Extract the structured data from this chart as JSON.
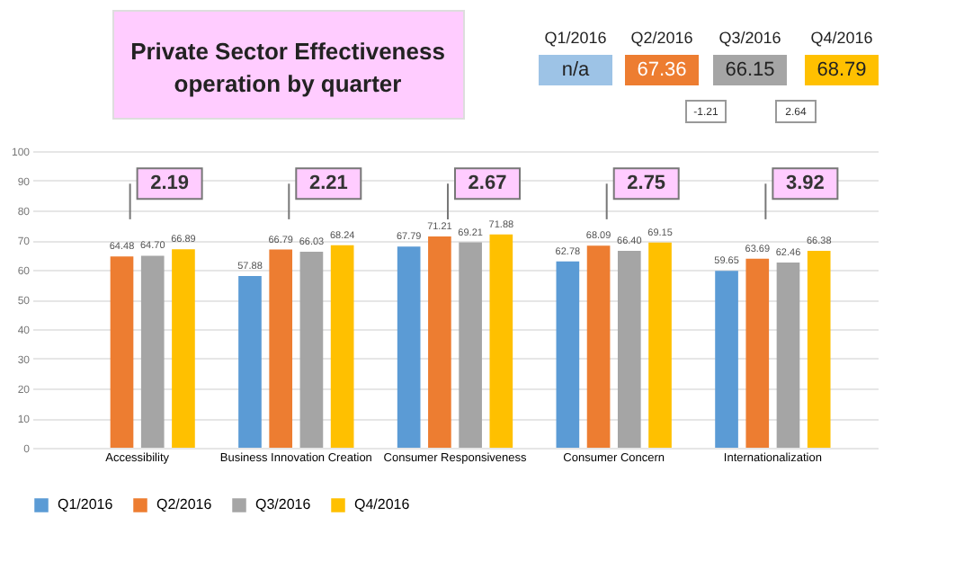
{
  "chart_data": {
    "type": "bar",
    "title": "Private Sector Effectiveness\noperation by quarter",
    "categories": [
      "Accessibility",
      "Business Innovation Creation",
      "Consumer Responsiveness",
      "Consumer Concern",
      "Internationalization"
    ],
    "series": [
      {
        "name": "Q1/2016",
        "color": "#5b9bd5",
        "values": [
          null,
          57.88,
          67.79,
          62.78,
          59.65
        ],
        "value_labels": [
          null,
          "57.88",
          "67.79",
          "62.78",
          "59.65"
        ]
      },
      {
        "name": "Q2/2016",
        "color": "#ed7d31",
        "values": [
          64.48,
          66.79,
          71.21,
          68.09,
          63.69
        ],
        "value_labels": [
          "64.48",
          "66.79",
          "71.21",
          "68.09",
          "63.69"
        ]
      },
      {
        "name": "Q3/2016",
        "color": "#a5a5a5",
        "values": [
          64.7,
          66.03,
          69.21,
          66.4,
          62.46
        ],
        "value_labels": [
          "64.70",
          "66.03",
          "69.21",
          "66.40",
          "62.46"
        ]
      },
      {
        "name": "Q4/2016",
        "color": "#ffc000",
        "values": [
          66.89,
          68.24,
          71.88,
          69.15,
          66.38
        ],
        "value_labels": [
          "66.89",
          "68.24",
          "71.88",
          "69.15",
          "66.38"
        ]
      }
    ],
    "ylim": [
      0,
      100
    ],
    "yticks": [
      0,
      10,
      20,
      30,
      40,
      50,
      60,
      70,
      80,
      90,
      100
    ],
    "grid": "y",
    "legend": "bottom",
    "annotations": [
      "2.19",
      "2.21",
      "2.67",
      "2.75",
      "3.92",
      "Q1/2016",
      "Q2/2016",
      "Q3/2016",
      "Q4/2016",
      "n/a",
      "67.36",
      "66.15",
      "68.79",
      "-1.21",
      "2.64"
    ]
  }
}
